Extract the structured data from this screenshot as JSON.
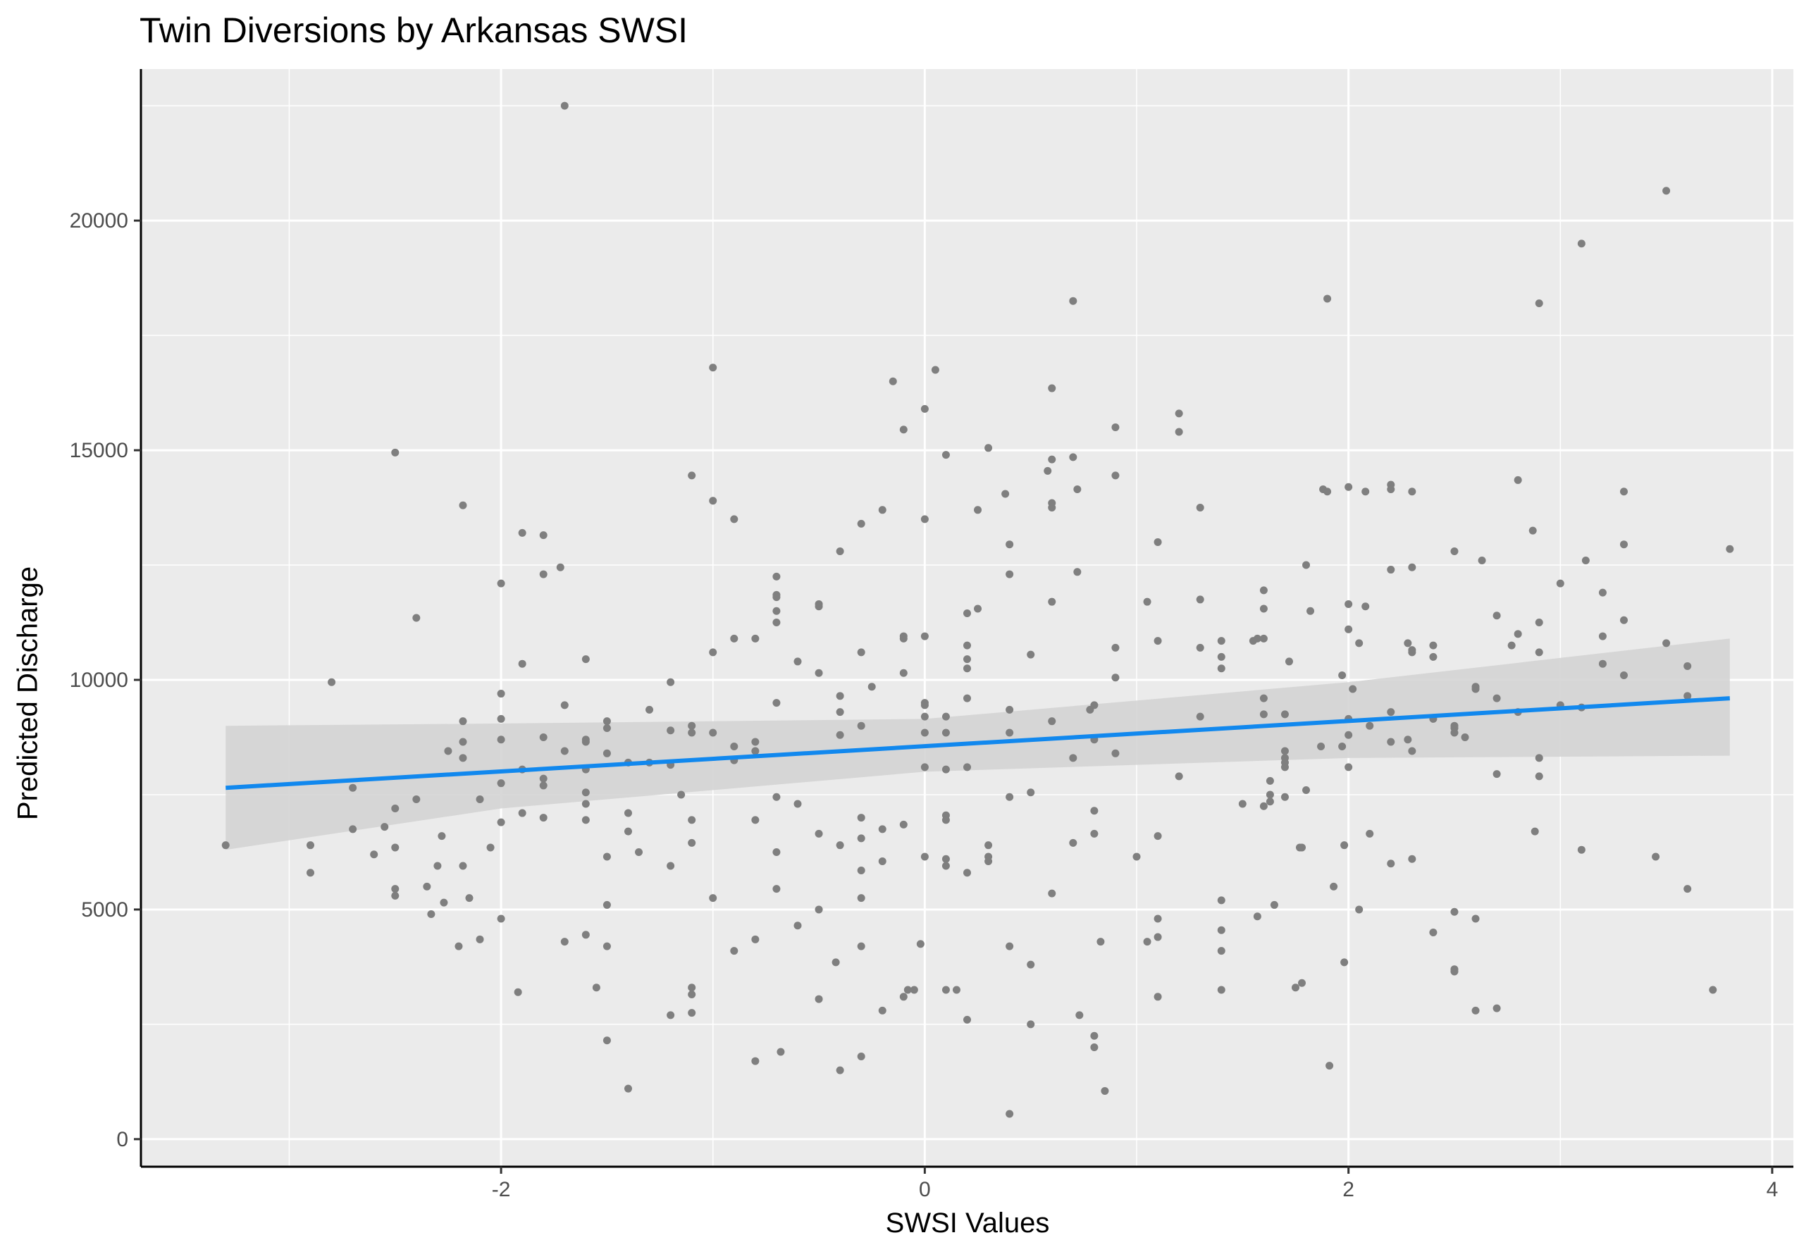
{
  "chart_data": {
    "type": "scatter",
    "title": "Twin Diversions by Arkansas SWSI",
    "xlabel": "SWSI Values",
    "ylabel": "Predicted Discharge",
    "xlim": [
      -3.7,
      4.1
    ],
    "ylim": [
      -600,
      23300
    ],
    "x_ticks": [
      -2,
      0,
      2,
      4
    ],
    "x_tick_labels": [
      "-2",
      "0",
      "2",
      "4"
    ],
    "y_ticks": [
      0,
      5000,
      10000,
      15000,
      20000
    ],
    "y_tick_labels": [
      "0",
      "5000",
      "10000",
      "15000",
      "20000"
    ],
    "grid": true,
    "legend": "none",
    "colors": {
      "panel": "#ebebeb",
      "grid": "#ffffff",
      "points": "#7f7f7f",
      "fit_line": "#1188ee",
      "ribbon": "#d4d4d4"
    },
    "fit_line": {
      "x": [
        -3.3,
        3.8
      ],
      "y": [
        7650,
        9600
      ]
    },
    "confidence_band": {
      "x": [
        -3.3,
        -2,
        0,
        2,
        3.8
      ],
      "lower": [
        6300,
        7200,
        8000,
        8300,
        8350
      ],
      "upper": [
        9000,
        9050,
        9150,
        9950,
        10900
      ]
    },
    "points": [
      [
        -3.3,
        6400
      ],
      [
        -2.9,
        6400
      ],
      [
        -2.9,
        5800
      ],
      [
        -2.8,
        9950
      ],
      [
        -2.7,
        7650
      ],
      [
        -2.7,
        6750
      ],
      [
        -2.6,
        6200
      ],
      [
        -2.55,
        6800
      ],
      [
        -2.5,
        14950
      ],
      [
        -2.5,
        7200
      ],
      [
        -2.5,
        6350
      ],
      [
        -2.5,
        5450
      ],
      [
        -2.5,
        5300
      ],
      [
        -2.4,
        11350
      ],
      [
        -2.4,
        7400
      ],
      [
        -2.35,
        5500
      ],
      [
        -2.33,
        4900
      ],
      [
        -2.3,
        5950
      ],
      [
        -2.28,
        6600
      ],
      [
        -2.27,
        5150
      ],
      [
        -2.25,
        8450
      ],
      [
        -2.2,
        4200
      ],
      [
        -2.18,
        13800
      ],
      [
        -2.18,
        9100
      ],
      [
        -2.18,
        8650
      ],
      [
        -2.18,
        8300
      ],
      [
        -2.18,
        5950
      ],
      [
        -2.15,
        5250
      ],
      [
        -2.1,
        7400
      ],
      [
        -2.1,
        4350
      ],
      [
        -2.05,
        6350
      ],
      [
        -2,
        12100
      ],
      [
        -2,
        9700
      ],
      [
        -2,
        9150
      ],
      [
        -2,
        8700
      ],
      [
        -2,
        7750
      ],
      [
        -2,
        6900
      ],
      [
        -2,
        4800
      ],
      [
        -1.9,
        13200
      ],
      [
        -1.9,
        10350
      ],
      [
        -1.9,
        8050
      ],
      [
        -1.9,
        7100
      ],
      [
        -1.92,
        3200
      ],
      [
        -1.8,
        13150
      ],
      [
        -1.8,
        12300
      ],
      [
        -1.8,
        8750
      ],
      [
        -1.8,
        7850
      ],
      [
        -1.8,
        7700
      ],
      [
        -1.8,
        7000
      ],
      [
        -1.7,
        22500
      ],
      [
        -1.72,
        12450
      ],
      [
        -1.7,
        9450
      ],
      [
        -1.7,
        8450
      ],
      [
        -1.7,
        4300
      ],
      [
        -1.6,
        10450
      ],
      [
        -1.6,
        8700
      ],
      [
        -1.6,
        8650
      ],
      [
        -1.6,
        8050
      ],
      [
        -1.6,
        7550
      ],
      [
        -1.6,
        7300
      ],
      [
        -1.6,
        6950
      ],
      [
        -1.6,
        4450
      ],
      [
        -1.55,
        3300
      ],
      [
        -1.5,
        9100
      ],
      [
        -1.5,
        8950
      ],
      [
        -1.5,
        8400
      ],
      [
        -1.5,
        6150
      ],
      [
        -1.5,
        5100
      ],
      [
        -1.5,
        4200
      ],
      [
        -1.5,
        2150
      ],
      [
        -1.4,
        8200
      ],
      [
        -1.4,
        7100
      ],
      [
        -1.4,
        6700
      ],
      [
        -1.4,
        1100
      ],
      [
        -1.35,
        6250
      ],
      [
        -1.3,
        9350
      ],
      [
        -1.3,
        8200
      ],
      [
        -1.2,
        9950
      ],
      [
        -1.2,
        8900
      ],
      [
        -1.2,
        8150
      ],
      [
        -1.2,
        5950
      ],
      [
        -1.2,
        2700
      ],
      [
        -1.15,
        7500
      ],
      [
        -1.1,
        14450
      ],
      [
        -1.1,
        9000
      ],
      [
        -1.1,
        8850
      ],
      [
        -1.1,
        6950
      ],
      [
        -1.1,
        6450
      ],
      [
        -1.1,
        3300
      ],
      [
        -1.1,
        3150
      ],
      [
        -1.1,
        2750
      ],
      [
        -1,
        16800
      ],
      [
        -1,
        13900
      ],
      [
        -1,
        10600
      ],
      [
        -1,
        8850
      ],
      [
        -1,
        5250
      ],
      [
        -0.9,
        13500
      ],
      [
        -0.9,
        10900
      ],
      [
        -0.9,
        8550
      ],
      [
        -0.9,
        8250
      ],
      [
        -0.9,
        4100
      ],
      [
        -0.8,
        10900
      ],
      [
        -0.8,
        8650
      ],
      [
        -0.8,
        8450
      ],
      [
        -0.8,
        6950
      ],
      [
        -0.8,
        4350
      ],
      [
        -0.8,
        1700
      ],
      [
        -0.7,
        12250
      ],
      [
        -0.7,
        11850
      ],
      [
        -0.7,
        11800
      ],
      [
        -0.7,
        11500
      ],
      [
        -0.7,
        11250
      ],
      [
        -0.7,
        9500
      ],
      [
        -0.7,
        7450
      ],
      [
        -0.7,
        6250
      ],
      [
        -0.7,
        5450
      ],
      [
        -0.68,
        1900
      ],
      [
        -0.6,
        10400
      ],
      [
        -0.6,
        7300
      ],
      [
        -0.6,
        4650
      ],
      [
        -0.5,
        11650
      ],
      [
        -0.5,
        11600
      ],
      [
        -0.5,
        10150
      ],
      [
        -0.5,
        6650
      ],
      [
        -0.5,
        5000
      ],
      [
        -0.5,
        3050
      ],
      [
        -0.4,
        12800
      ],
      [
        -0.4,
        9650
      ],
      [
        -0.4,
        9300
      ],
      [
        -0.4,
        8800
      ],
      [
        -0.4,
        6400
      ],
      [
        -0.42,
        3850
      ],
      [
        -0.4,
        1500
      ],
      [
        -0.3,
        13400
      ],
      [
        -0.3,
        10600
      ],
      [
        -0.3,
        9000
      ],
      [
        -0.3,
        7000
      ],
      [
        -0.3,
        6550
      ],
      [
        -0.3,
        5850
      ],
      [
        -0.3,
        5250
      ],
      [
        -0.3,
        4200
      ],
      [
        -0.3,
        1800
      ],
      [
        -0.25,
        9850
      ],
      [
        -0.2,
        13700
      ],
      [
        -0.2,
        6750
      ],
      [
        -0.2,
        6050
      ],
      [
        -0.2,
        2800
      ],
      [
        -0.15,
        16500
      ],
      [
        -0.1,
        15450
      ],
      [
        -0.1,
        10950
      ],
      [
        -0.1,
        10900
      ],
      [
        -0.1,
        10150
      ],
      [
        -0.1,
        6850
      ],
      [
        -0.1,
        3100
      ],
      [
        -0.08,
        3250
      ],
      [
        -0.05,
        3250
      ],
      [
        0,
        15900
      ],
      [
        0,
        13500
      ],
      [
        0,
        10950
      ],
      [
        0,
        9500
      ],
      [
        0,
        9450
      ],
      [
        0,
        9200
      ],
      [
        0,
        8850
      ],
      [
        0,
        8100
      ],
      [
        0,
        6150
      ],
      [
        -0.02,
        4250
      ],
      [
        0.05,
        16750
      ],
      [
        0.1,
        14900
      ],
      [
        0.1,
        9200
      ],
      [
        0.1,
        8850
      ],
      [
        0.1,
        8050
      ],
      [
        0.1,
        7050
      ],
      [
        0.1,
        6950
      ],
      [
        0.1,
        6100
      ],
      [
        0.1,
        5950
      ],
      [
        0.1,
        3250
      ],
      [
        0.15,
        3250
      ],
      [
        0.2,
        11450
      ],
      [
        0.2,
        10750
      ],
      [
        0.2,
        10450
      ],
      [
        0.2,
        10250
      ],
      [
        0.2,
        9600
      ],
      [
        0.2,
        8100
      ],
      [
        0.2,
        5800
      ],
      [
        0.2,
        2600
      ],
      [
        0.25,
        13700
      ],
      [
        0.25,
        11550
      ],
      [
        0.3,
        15050
      ],
      [
        0.3,
        6400
      ],
      [
        0.3,
        6150
      ],
      [
        0.3,
        6050
      ],
      [
        0.38,
        14050
      ],
      [
        0.4,
        12950
      ],
      [
        0.4,
        12300
      ],
      [
        0.4,
        9350
      ],
      [
        0.4,
        8850
      ],
      [
        0.4,
        7450
      ],
      [
        0.4,
        4200
      ],
      [
        0.4,
        550
      ],
      [
        0.5,
        10550
      ],
      [
        0.5,
        7550
      ],
      [
        0.5,
        3800
      ],
      [
        0.5,
        2500
      ],
      [
        0.58,
        14550
      ],
      [
        0.6,
        16350
      ],
      [
        0.6,
        14800
      ],
      [
        0.6,
        13850
      ],
      [
        0.6,
        13750
      ],
      [
        0.6,
        11700
      ],
      [
        0.6,
        9100
      ],
      [
        0.6,
        5350
      ],
      [
        0.7,
        18250
      ],
      [
        0.7,
        14850
      ],
      [
        0.72,
        14150
      ],
      [
        0.72,
        12350
      ],
      [
        0.7,
        8300
      ],
      [
        0.7,
        6450
      ],
      [
        0.73,
        2700
      ],
      [
        0.78,
        9350
      ],
      [
        0.8,
        9450
      ],
      [
        0.8,
        8700
      ],
      [
        0.8,
        7150
      ],
      [
        0.8,
        6650
      ],
      [
        0.8,
        2250
      ],
      [
        0.8,
        2000
      ],
      [
        0.83,
        4300
      ],
      [
        0.85,
        1050
      ],
      [
        0.9,
        15500
      ],
      [
        0.9,
        14450
      ],
      [
        0.9,
        10700
      ],
      [
        0.9,
        10050
      ],
      [
        0.9,
        8400
      ],
      [
        1,
        6150
      ],
      [
        1.05,
        11700
      ],
      [
        1.05,
        4300
      ],
      [
        1.1,
        13000
      ],
      [
        1.1,
        10850
      ],
      [
        1.1,
        6600
      ],
      [
        1.1,
        4800
      ],
      [
        1.1,
        4400
      ],
      [
        1.1,
        3100
      ],
      [
        1.2,
        15800
      ],
      [
        1.2,
        15400
      ],
      [
        1.2,
        7900
      ],
      [
        1.3,
        13750
      ],
      [
        1.3,
        11750
      ],
      [
        1.3,
        10700
      ],
      [
        1.3,
        9200
      ],
      [
        1.4,
        10850
      ],
      [
        1.4,
        10500
      ],
      [
        1.4,
        10250
      ],
      [
        1.4,
        5200
      ],
      [
        1.4,
        4550
      ],
      [
        1.4,
        4100
      ],
      [
        1.4,
        3250
      ],
      [
        1.5,
        7300
      ],
      [
        1.55,
        10850
      ],
      [
        1.57,
        10900
      ],
      [
        1.6,
        11950
      ],
      [
        1.6,
        11550
      ],
      [
        1.6,
        10900
      ],
      [
        1.6,
        9600
      ],
      [
        1.6,
        9250
      ],
      [
        1.6,
        7250
      ],
      [
        1.57,
        4850
      ],
      [
        1.63,
        7800
      ],
      [
        1.63,
        7500
      ],
      [
        1.63,
        7350
      ],
      [
        1.65,
        5100
      ],
      [
        1.7,
        9250
      ],
      [
        1.7,
        8450
      ],
      [
        1.7,
        8300
      ],
      [
        1.7,
        8200
      ],
      [
        1.7,
        8100
      ],
      [
        1.7,
        7450
      ],
      [
        1.72,
        10400
      ],
      [
        1.75,
        3300
      ],
      [
        1.77,
        6350
      ],
      [
        1.78,
        3400
      ],
      [
        1.78,
        6350
      ],
      [
        1.8,
        12500
      ],
      [
        1.8,
        7600
      ],
      [
        1.82,
        11500
      ],
      [
        1.87,
        8550
      ],
      [
        1.88,
        14150
      ],
      [
        1.9,
        14100
      ],
      [
        1.9,
        18300
      ],
      [
        1.91,
        1600
      ],
      [
        1.93,
        5500
      ],
      [
        1.97,
        10100
      ],
      [
        1.97,
        8550
      ],
      [
        1.98,
        6400
      ],
      [
        1.98,
        3850
      ],
      [
        2,
        14200
      ],
      [
        2,
        11650
      ],
      [
        2,
        11100
      ],
      [
        2,
        9150
      ],
      [
        2,
        8800
      ],
      [
        2,
        8100
      ],
      [
        2.02,
        9800
      ],
      [
        2.05,
        10800
      ],
      [
        2.05,
        5000
      ],
      [
        2.08,
        14100
      ],
      [
        2.08,
        11600
      ],
      [
        2.1,
        9000
      ],
      [
        2.1,
        6650
      ],
      [
        2.2,
        14250
      ],
      [
        2.2,
        14150
      ],
      [
        2.2,
        12400
      ],
      [
        2.2,
        9300
      ],
      [
        2.2,
        8650
      ],
      [
        2.2,
        6000
      ],
      [
        2.28,
        10800
      ],
      [
        2.28,
        8700
      ],
      [
        2.3,
        12450
      ],
      [
        2.3,
        10650
      ],
      [
        2.3,
        10600
      ],
      [
        2.3,
        8450
      ],
      [
        2.3,
        6100
      ],
      [
        2.3,
        14100
      ],
      [
        2.4,
        10750
      ],
      [
        2.4,
        10500
      ],
      [
        2.4,
        9150
      ],
      [
        2.4,
        4500
      ],
      [
        2.5,
        12800
      ],
      [
        2.5,
        9000
      ],
      [
        2.5,
        8950
      ],
      [
        2.5,
        8850
      ],
      [
        2.5,
        4950
      ],
      [
        2.5,
        3700
      ],
      [
        2.5,
        3650
      ],
      [
        2.55,
        8750
      ],
      [
        2.6,
        9850
      ],
      [
        2.6,
        9800
      ],
      [
        2.6,
        4800
      ],
      [
        2.6,
        2800
      ],
      [
        2.63,
        12600
      ],
      [
        2.7,
        11400
      ],
      [
        2.7,
        9600
      ],
      [
        2.7,
        7950
      ],
      [
        2.7,
        2850
      ],
      [
        2.77,
        10750
      ],
      [
        2.8,
        14350
      ],
      [
        2.8,
        11000
      ],
      [
        2.8,
        9300
      ],
      [
        2.87,
        13250
      ],
      [
        2.88,
        6700
      ],
      [
        2.9,
        18200
      ],
      [
        2.9,
        11250
      ],
      [
        2.9,
        10600
      ],
      [
        2.9,
        8300
      ],
      [
        2.9,
        7900
      ],
      [
        3,
        12100
      ],
      [
        3,
        9450
      ],
      [
        3.1,
        19500
      ],
      [
        3.1,
        9400
      ],
      [
        3.12,
        12600
      ],
      [
        3.1,
        6300
      ],
      [
        3.2,
        11900
      ],
      [
        3.2,
        10950
      ],
      [
        3.2,
        10350
      ],
      [
        3.3,
        14100
      ],
      [
        3.3,
        12950
      ],
      [
        3.3,
        11300
      ],
      [
        3.3,
        10100
      ],
      [
        3.45,
        6150
      ],
      [
        3.5,
        20650
      ],
      [
        3.5,
        10800
      ],
      [
        3.6,
        10300
      ],
      [
        3.6,
        9650
      ],
      [
        3.6,
        5450
      ],
      [
        3.72,
        3250
      ],
      [
        3.8,
        12850
      ]
    ]
  }
}
